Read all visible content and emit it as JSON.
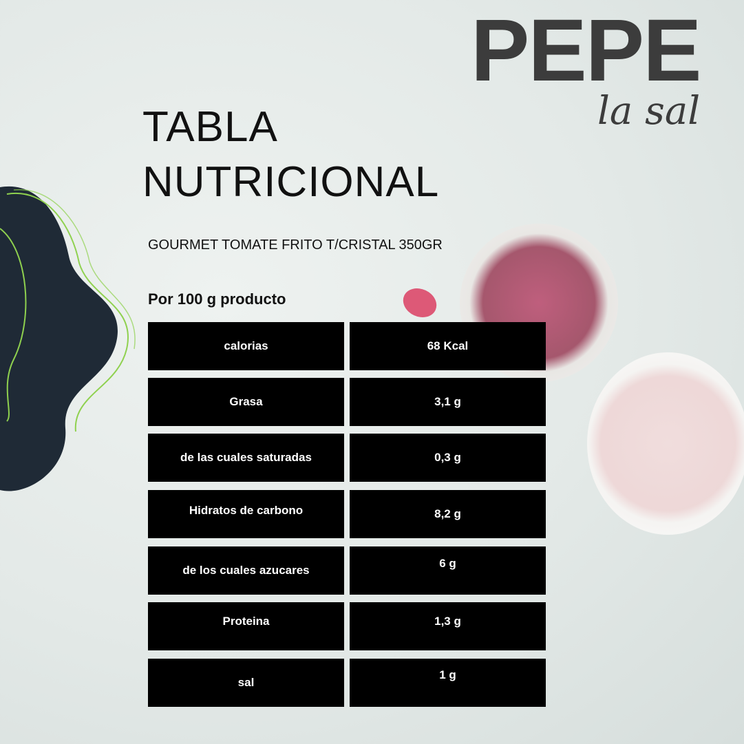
{
  "brand": {
    "name": "PEPE",
    "tagline": "la sal"
  },
  "title_lines": [
    "TABLA",
    "NUTRICIONAL"
  ],
  "product": "GOURMET TOMATE FRITO T/CRISTAL 350GR",
  "serving": "Por 100 g producto",
  "rows": [
    {
      "label": "calorias",
      "value": "68 Kcal"
    },
    {
      "label": "Grasa",
      "value": "3,1 g"
    },
    {
      "label": "de las cuales saturadas",
      "value": "0,3 g"
    },
    {
      "label": "Hidratos de carbono",
      "value": "8,2 g"
    },
    {
      "label": "de los cuales azucares",
      "value": "6 g"
    },
    {
      "label": "Proteina",
      "value": "1,3 g"
    },
    {
      "label": "sal",
      "value": "1 g"
    }
  ],
  "colors": {
    "cell": "#000000",
    "logo": "#3c3c3c",
    "blob": "#1f2a36",
    "accent_line": "#8fd14f"
  }
}
